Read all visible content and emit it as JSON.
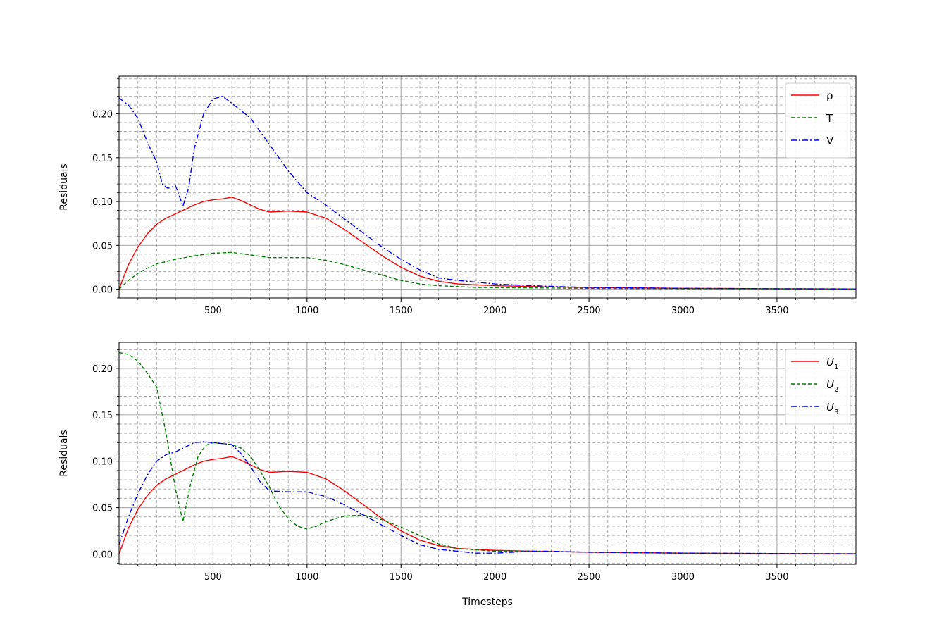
{
  "chart_data": [
    {
      "type": "line",
      "xlabel": "",
      "ylabel": "Residuals",
      "xlim": [
        0,
        3920
      ],
      "ylim": [
        -0.01,
        0.243
      ],
      "xticks": [
        "500",
        "1000",
        "1500",
        "2000",
        "2500",
        "3000",
        "3500"
      ],
      "yticks": [
        "0.00",
        "0.05",
        "0.10",
        "0.15",
        "0.20"
      ],
      "grid": true,
      "legend_position": "top-right",
      "series": [
        {
          "name": "ρ",
          "color": "#ff0000",
          "dash": "solid",
          "points": [
            [
              0,
              0
            ],
            [
              50,
              0.028
            ],
            [
              100,
              0.048
            ],
            [
              150,
              0.063
            ],
            [
              200,
              0.074
            ],
            [
              250,
              0.081
            ],
            [
              300,
              0.086
            ],
            [
              350,
              0.091
            ],
            [
              400,
              0.096
            ],
            [
              450,
              0.1
            ],
            [
              500,
              0.102
            ],
            [
              550,
              0.103
            ],
            [
              600,
              0.105
            ],
            [
              650,
              0.101
            ],
            [
              700,
              0.096
            ],
            [
              750,
              0.091
            ],
            [
              800,
              0.088
            ],
            [
              900,
              0.089
            ],
            [
              1000,
              0.088
            ],
            [
              1100,
              0.081
            ],
            [
              1200,
              0.068
            ],
            [
              1300,
              0.053
            ],
            [
              1400,
              0.038
            ],
            [
              1500,
              0.025
            ],
            [
              1600,
              0.015
            ],
            [
              1700,
              0.009
            ],
            [
              1800,
              0.006
            ],
            [
              2000,
              0.004
            ],
            [
              2200,
              0.003
            ],
            [
              2500,
              0.002
            ],
            [
              3000,
              0.001
            ],
            [
              3500,
              0.0005
            ],
            [
              3920,
              0.0003
            ]
          ]
        },
        {
          "name": "T",
          "color": "#008000",
          "dash": "dashed",
          "points": [
            [
              0,
              0
            ],
            [
              50,
              0.01
            ],
            [
              100,
              0.018
            ],
            [
              150,
              0.024
            ],
            [
              200,
              0.029
            ],
            [
              300,
              0.034
            ],
            [
              400,
              0.038
            ],
            [
              500,
              0.041
            ],
            [
              600,
              0.042
            ],
            [
              700,
              0.039
            ],
            [
              800,
              0.036
            ],
            [
              900,
              0.036
            ],
            [
              1000,
              0.036
            ],
            [
              1100,
              0.033
            ],
            [
              1200,
              0.028
            ],
            [
              1300,
              0.022
            ],
            [
              1400,
              0.016
            ],
            [
              1500,
              0.01
            ],
            [
              1600,
              0.006
            ],
            [
              1700,
              0.004
            ],
            [
              1900,
              0.002
            ],
            [
              2200,
              0.0015
            ],
            [
              2500,
              0.001
            ],
            [
              3000,
              0.0005
            ],
            [
              3920,
              0.0002
            ]
          ]
        },
        {
          "name": "V",
          "color": "#0000ff",
          "dash": "dashdot",
          "points": [
            [
              0,
              0.218
            ],
            [
              50,
              0.21
            ],
            [
              100,
              0.195
            ],
            [
              150,
              0.168
            ],
            [
              200,
              0.145
            ],
            [
              230,
              0.12
            ],
            [
              260,
              0.115
            ],
            [
              300,
              0.118
            ],
            [
              340,
              0.095
            ],
            [
              370,
              0.115
            ],
            [
              400,
              0.16
            ],
            [
              450,
              0.2
            ],
            [
              500,
              0.217
            ],
            [
              550,
              0.22
            ],
            [
              600,
              0.212
            ],
            [
              700,
              0.195
            ],
            [
              800,
              0.165
            ],
            [
              900,
              0.135
            ],
            [
              1000,
              0.11
            ],
            [
              1100,
              0.096
            ],
            [
              1200,
              0.08
            ],
            [
              1300,
              0.064
            ],
            [
              1400,
              0.048
            ],
            [
              1500,
              0.034
            ],
            [
              1600,
              0.022
            ],
            [
              1700,
              0.013
            ],
            [
              1800,
              0.01
            ],
            [
              1900,
              0.008
            ],
            [
              2000,
              0.006
            ],
            [
              2200,
              0.004
            ],
            [
              2500,
              0.002
            ],
            [
              3000,
              0.001
            ],
            [
              3500,
              0.0005
            ],
            [
              3920,
              0.0003
            ]
          ]
        }
      ]
    },
    {
      "type": "line",
      "xlabel": "Timesteps",
      "ylabel": "Residuals",
      "xlim": [
        0,
        3920
      ],
      "ylim": [
        -0.011,
        0.228
      ],
      "xticks": [
        "500",
        "1000",
        "1500",
        "2000",
        "2500",
        "3000",
        "3500"
      ],
      "yticks": [
        "0.00",
        "0.05",
        "0.10",
        "0.15",
        "0.20"
      ],
      "grid": true,
      "legend_position": "top-right",
      "series": [
        {
          "name": "U",
          "name_sub": "1",
          "color": "#ff0000",
          "dash": "solid",
          "points": [
            [
              0,
              0
            ],
            [
              50,
              0.028
            ],
            [
              100,
              0.048
            ],
            [
              150,
              0.063
            ],
            [
              200,
              0.074
            ],
            [
              250,
              0.081
            ],
            [
              300,
              0.086
            ],
            [
              350,
              0.091
            ],
            [
              400,
              0.096
            ],
            [
              450,
              0.1
            ],
            [
              500,
              0.102
            ],
            [
              550,
              0.103
            ],
            [
              600,
              0.105
            ],
            [
              650,
              0.101
            ],
            [
              700,
              0.096
            ],
            [
              750,
              0.091
            ],
            [
              800,
              0.088
            ],
            [
              900,
              0.089
            ],
            [
              1000,
              0.088
            ],
            [
              1100,
              0.081
            ],
            [
              1200,
              0.068
            ],
            [
              1300,
              0.053
            ],
            [
              1400,
              0.038
            ],
            [
              1500,
              0.025
            ],
            [
              1600,
              0.015
            ],
            [
              1700,
              0.009
            ],
            [
              1800,
              0.006
            ],
            [
              2000,
              0.004
            ],
            [
              2200,
              0.003
            ],
            [
              2500,
              0.002
            ],
            [
              3000,
              0.001
            ],
            [
              3500,
              0.0005
            ],
            [
              3920,
              0.0003
            ]
          ]
        },
        {
          "name": "U",
          "name_sub": "2",
          "color": "#008000",
          "dash": "dashed",
          "points": [
            [
              0,
              0.217
            ],
            [
              50,
              0.215
            ],
            [
              100,
              0.208
            ],
            [
              150,
              0.195
            ],
            [
              200,
              0.18
            ],
            [
              250,
              0.13
            ],
            [
              300,
              0.07
            ],
            [
              340,
              0.035
            ],
            [
              380,
              0.075
            ],
            [
              420,
              0.105
            ],
            [
              460,
              0.117
            ],
            [
              500,
              0.12
            ],
            [
              550,
              0.119
            ],
            [
              600,
              0.118
            ],
            [
              650,
              0.114
            ],
            [
              700,
              0.105
            ],
            [
              750,
              0.09
            ],
            [
              800,
              0.072
            ],
            [
              850,
              0.052
            ],
            [
              900,
              0.038
            ],
            [
              950,
              0.03
            ],
            [
              1000,
              0.027
            ],
            [
              1050,
              0.03
            ],
            [
              1100,
              0.035
            ],
            [
              1200,
              0.041
            ],
            [
              1300,
              0.042
            ],
            [
              1400,
              0.037
            ],
            [
              1500,
              0.029
            ],
            [
              1600,
              0.02
            ],
            [
              1700,
              0.011
            ],
            [
              1800,
              0.006
            ],
            [
              2000,
              0.003
            ],
            [
              2200,
              0.003
            ],
            [
              2500,
              0.002
            ],
            [
              3000,
              0.001
            ],
            [
              3920,
              0.0003
            ]
          ]
        },
        {
          "name": "U",
          "name_sub": "3",
          "color": "#0000ff",
          "dash": "dashdot",
          "points": [
            [
              0,
              0.01
            ],
            [
              50,
              0.04
            ],
            [
              100,
              0.065
            ],
            [
              150,
              0.085
            ],
            [
              200,
              0.1
            ],
            [
              250,
              0.107
            ],
            [
              300,
              0.11
            ],
            [
              350,
              0.115
            ],
            [
              400,
              0.12
            ],
            [
              450,
              0.121
            ],
            [
              500,
              0.12
            ],
            [
              600,
              0.118
            ],
            [
              650,
              0.108
            ],
            [
              700,
              0.094
            ],
            [
              750,
              0.078
            ],
            [
              800,
              0.068
            ],
            [
              900,
              0.067
            ],
            [
              1000,
              0.067
            ],
            [
              1100,
              0.062
            ],
            [
              1200,
              0.053
            ],
            [
              1300,
              0.042
            ],
            [
              1400,
              0.031
            ],
            [
              1500,
              0.02
            ],
            [
              1600,
              0.01
            ],
            [
              1700,
              0.005
            ],
            [
              1800,
              0.003
            ],
            [
              1900,
              0.001
            ],
            [
              2000,
              0.001
            ],
            [
              2100,
              0.002
            ],
            [
              2200,
              0.003
            ],
            [
              2300,
              0.003
            ],
            [
              2500,
              0.002
            ],
            [
              3000,
              0.001
            ],
            [
              3920,
              0.0003
            ]
          ]
        }
      ]
    }
  ]
}
